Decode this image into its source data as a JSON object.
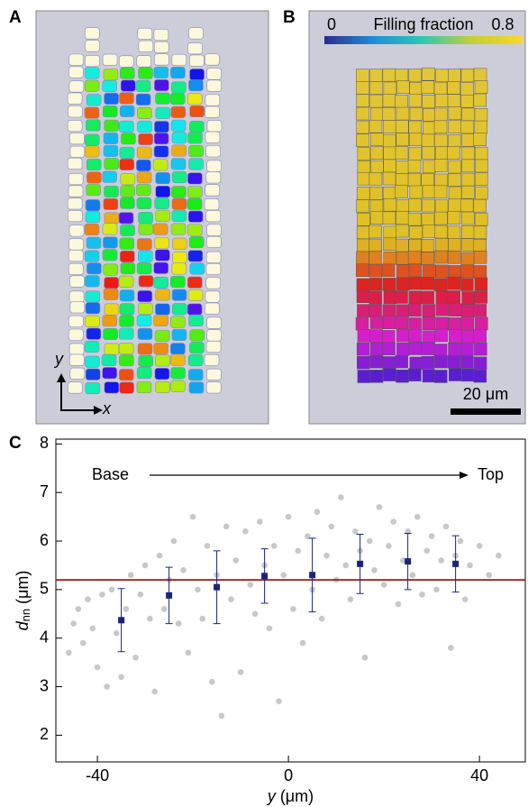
{
  "panels": {
    "a_label": "A",
    "b_label": "B",
    "c_label": "C",
    "axis_y": "y",
    "axis_x": "x",
    "scale_bar": "20 μm"
  },
  "colorbar": {
    "label": "Filling fraction",
    "ticks": [
      0,
      0.8
    ]
  },
  "chart_data": {
    "type": "scatter",
    "xlim": [
      -48.7,
      49.6
    ],
    "ylim": [
      1.45,
      8.1
    ],
    "xticks": [
      -40,
      0,
      40
    ],
    "yticks": [
      2,
      3,
      4,
      5,
      6,
      7,
      8
    ],
    "xlabel": {
      "var": "y",
      "unit": "(μm)"
    },
    "ylabel": {
      "var": "d",
      "sub": "nn",
      "unit": "(μm)"
    },
    "annotations": {
      "start": "Base",
      "end": "Top"
    },
    "reference_line": {
      "value": 5.2,
      "color": "#a01818"
    },
    "points": {
      "color": "#c8c8c8",
      "x": [
        -46,
        -45,
        -44,
        -43,
        -42,
        -41,
        -40,
        -39,
        -38,
        -37,
        -36,
        -35,
        -34,
        -33,
        -32,
        -31,
        -30,
        -29,
        -28,
        -27,
        -26,
        -25,
        -24,
        -23,
        -22,
        -21,
        -20,
        -19,
        -18,
        -17,
        -16,
        -15,
        -14,
        -13,
        -12,
        -11,
        -10,
        -9,
        -8,
        -7,
        -6,
        -5,
        -4,
        -3,
        -2,
        -1,
        0,
        1,
        2,
        3,
        4,
        5,
        6,
        7,
        8,
        9,
        10,
        11,
        12,
        13,
        14,
        15,
        16,
        17,
        18,
        19,
        20,
        21,
        22,
        23,
        24,
        25,
        26,
        27,
        28,
        29,
        30,
        31,
        32,
        33,
        34,
        35,
        36,
        37,
        38,
        40,
        42,
        44
      ],
      "y": [
        3.7,
        4.3,
        4.6,
        3.9,
        4.8,
        4.2,
        3.4,
        4.9,
        3.0,
        5.0,
        4.1,
        3.2,
        4.6,
        5.3,
        3.6,
        4.9,
        5.5,
        4.4,
        2.9,
        5.7,
        4.6,
        5.2,
        6.0,
        4.3,
        5.4,
        3.7,
        6.5,
        5.0,
        4.4,
        5.9,
        3.1,
        5.3,
        2.4,
        6.3,
        4.8,
        5.6,
        3.3,
        6.2,
        5.1,
        4.5,
        6.4,
        5.5,
        4.2,
        5.9,
        2.7,
        5.3,
        6.5,
        4.6,
        5.8,
        3.9,
        6.1,
        5.0,
        6.6,
        4.4,
        5.7,
        6.3,
        5.2,
        6.9,
        5.5,
        4.8,
        6.2,
        5.8,
        3.6,
        6.0,
        5.4,
        6.7,
        5.1,
        5.9,
        6.4,
        4.7,
        5.6,
        6.2,
        5.3,
        6.5,
        4.9,
        5.8,
        6.1,
        5.0,
        5.6,
        6.3,
        3.8,
        5.7,
        6.0,
        4.8,
        5.5,
        5.9,
        5.3,
        5.7
      ]
    },
    "means": {
      "color": "#1a2478",
      "x": [
        -35,
        -25,
        -15,
        -5,
        5,
        15,
        25,
        35
      ],
      "values": [
        4.37,
        4.88,
        5.05,
        5.28,
        5.3,
        5.53,
        5.58,
        5.53
      ],
      "errors": [
        0.65,
        0.58,
        0.75,
        0.56,
        0.76,
        0.61,
        0.58,
        0.58
      ]
    }
  }
}
